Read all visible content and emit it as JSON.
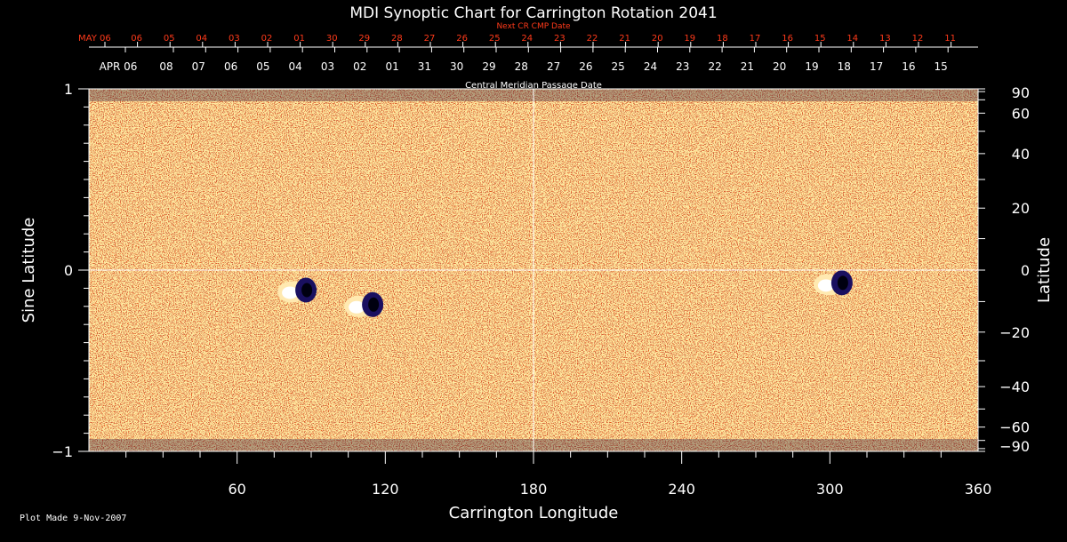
{
  "title": "MDI Synoptic Chart for Carrington Rotation 2041",
  "footer": "Plot Made  9-Nov-2007",
  "colors": {
    "background": "#000000",
    "map_base": "#e8521a",
    "top_axis_labels": "#ff3a1a",
    "axes": "#ffffff"
  },
  "chart_data": {
    "type": "heatmap",
    "title": "MDI Synoptic Chart for Carrington Rotation 2041",
    "xlabel": "Carrington Longitude",
    "ylabel_left": "Sine Latitude",
    "ylabel_right": "Latitude",
    "xlim": [
      0,
      360
    ],
    "ylim": [
      -1,
      1
    ],
    "x_ticks": [
      60,
      120,
      180,
      240,
      300,
      360
    ],
    "y_left_ticks": [
      {
        "v": 1,
        "label": "1"
      },
      {
        "v": 0,
        "label": "0"
      },
      {
        "v": -1,
        "label": "−1"
      }
    ],
    "y_right_ticks": [
      {
        "deg": 90,
        "label": "90"
      },
      {
        "deg": 60,
        "label": "60"
      },
      {
        "deg": 40,
        "label": "40"
      },
      {
        "deg": 20,
        "label": "20"
      },
      {
        "deg": 0,
        "label": "0"
      },
      {
        "deg": -20,
        "label": "−20"
      },
      {
        "deg": -40,
        "label": "−40"
      },
      {
        "deg": -60,
        "label": "−60"
      },
      {
        "deg": -90,
        "label": "−90"
      }
    ],
    "top_axis_1": {
      "label": "Next CR CMP Date",
      "dates": [
        "MAY 06",
        "06",
        "05",
        "04",
        "03",
        "02",
        "01",
        "30",
        "29",
        "28",
        "27",
        "26",
        "25",
        "24",
        "23",
        "22",
        "21",
        "20",
        "19",
        "18",
        "17",
        "16",
        "15",
        "14",
        "13",
        "12",
        "11"
      ]
    },
    "top_axis_2": {
      "label": "Central Meridian Passage Date",
      "dates": [
        "APR 06",
        "08",
        "07",
        "06",
        "05",
        "04",
        "03",
        "02",
        "01",
        "31",
        "30",
        "29",
        "28",
        "27",
        "26",
        "25",
        "24",
        "23",
        "22",
        "21",
        "20",
        "19",
        "18",
        "17",
        "16",
        "15"
      ]
    },
    "grid_lines": {
      "longitude": 180,
      "sine_latitude": 0
    },
    "features": [
      {
        "name": "active-region",
        "lon": 85,
        "sinlat": -0.12
      },
      {
        "name": "active-region",
        "lon": 112,
        "sinlat": -0.2
      },
      {
        "name": "active-region",
        "lon": 302,
        "sinlat": -0.08
      }
    ]
  }
}
